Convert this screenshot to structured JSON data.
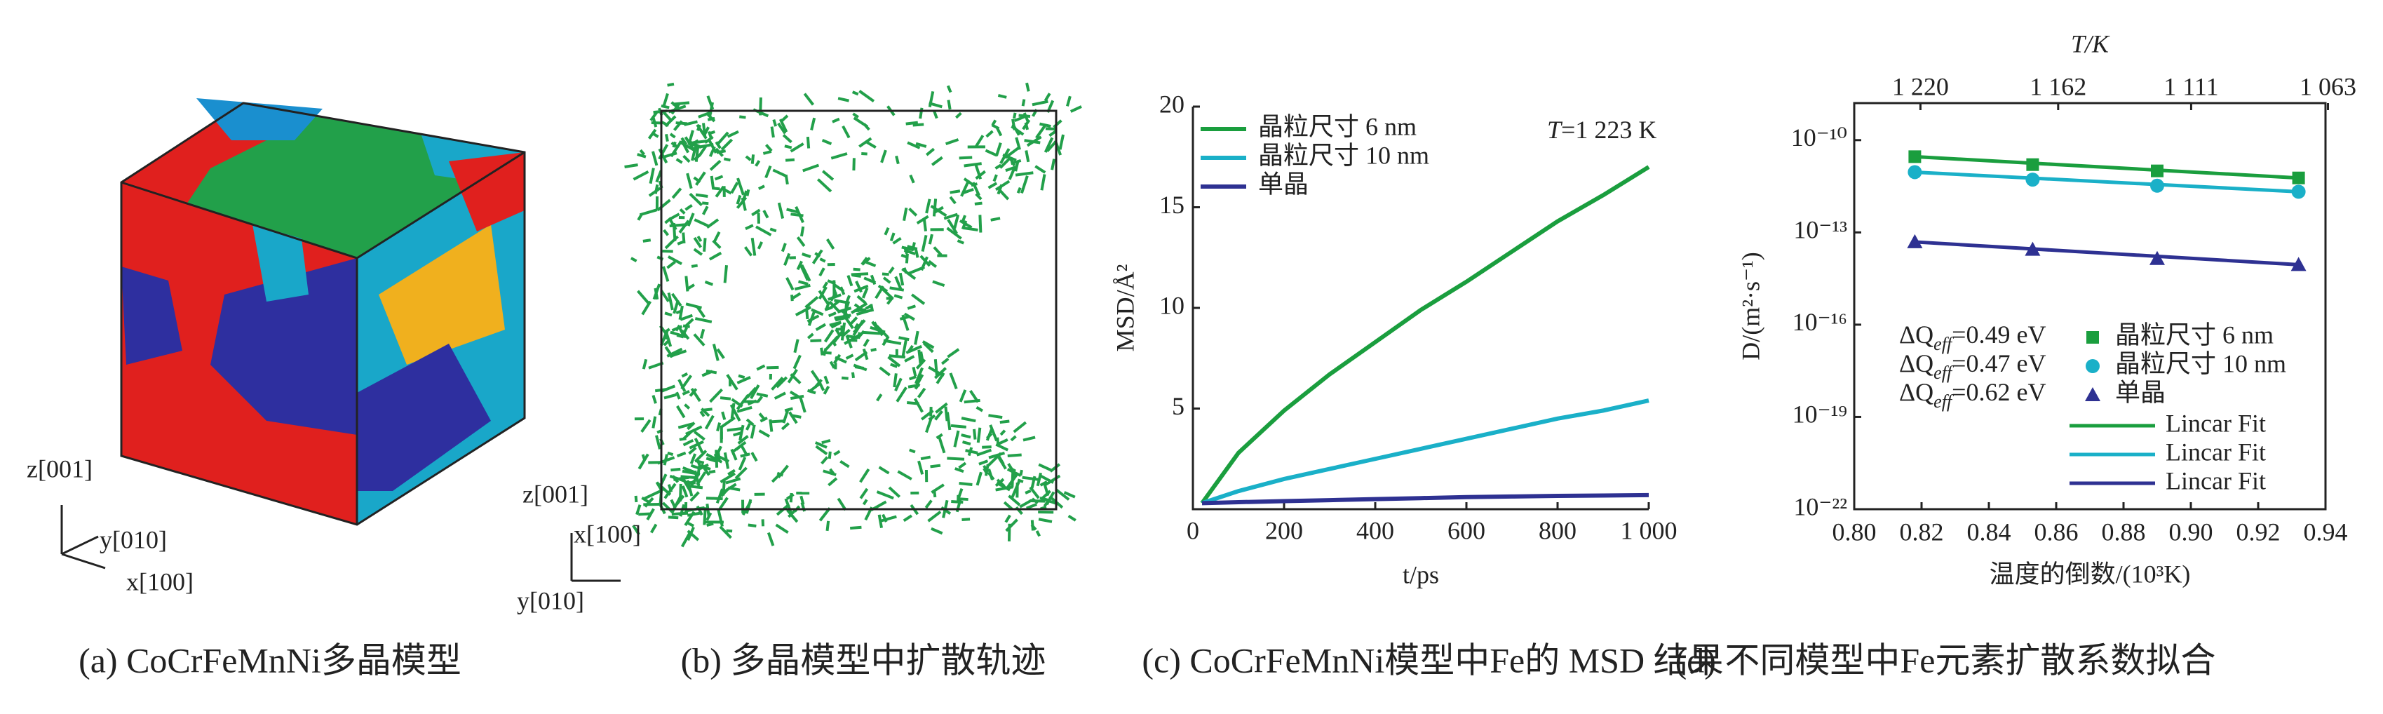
{
  "panels": [
    {
      "caption": "(a) CoCrFeMnNi多晶模型",
      "axes": [
        "z[001]",
        "y[010]",
        "x[100]"
      ]
    },
    {
      "caption": "(b) 多晶模型中扩散轨迹",
      "axes": [
        "z[001]",
        "x[100]",
        "y[010]"
      ]
    },
    {
      "caption": "(c) CoCrFeMnNi模型中Fe的 MSD 结果"
    },
    {
      "caption": "(d) 不同模型中Fe元素扩散系数拟合"
    }
  ],
  "chart_data": [
    {
      "type": "line",
      "xlabel": "t/ps",
      "ylabel": "MSD/Å²",
      "annotation": {
        "var": "T",
        "text": "=1 223 K"
      },
      "x": [
        20,
        100,
        200,
        300,
        400,
        500,
        600,
        700,
        800,
        900,
        1000
      ],
      "series": [
        {
          "name": "晶粒尺寸 6 nm",
          "color": "#1a9e3e",
          "values": [
            0.3,
            2.8,
            4.9,
            6.7,
            8.3,
            9.9,
            11.3,
            12.8,
            14.3,
            15.6,
            17.0
          ]
        },
        {
          "name": "晶粒尺寸 10 nm",
          "color": "#1ab0c8",
          "values": [
            0.3,
            0.9,
            1.5,
            2.0,
            2.5,
            3.0,
            3.5,
            4.0,
            4.5,
            4.9,
            5.4
          ]
        },
        {
          "name": "单晶",
          "color": "#2e3192",
          "values": [
            0.3,
            0.35,
            0.4,
            0.45,
            0.5,
            0.55,
            0.6,
            0.63,
            0.66,
            0.68,
            0.7
          ]
        }
      ],
      "xlim": [
        0,
        1000
      ],
      "ylim": [
        0,
        20
      ],
      "xticks": [
        0,
        200,
        400,
        600,
        800,
        {
          "value": 1000,
          "label": "1 000"
        }
      ],
      "yticks": [
        5,
        10,
        15,
        20
      ]
    },
    {
      "type": "scatter",
      "xlabel": "温度的倒数/(10³K)",
      "ylabel": "D/(m²·s⁻¹)",
      "x2label": "T/K",
      "log_y": true,
      "series": [
        {
          "name": "晶粒尺寸 6 nm",
          "color": "#1a9e3e",
          "marker": "square",
          "q": {
            "prefix": "ΔQ",
            "sub": "eff",
            "suffix": "=0.49 eV"
          },
          "x": [
            0.818,
            0.853,
            0.89,
            0.932
          ],
          "values": [
            2.9e-11,
            1.6e-11,
            1e-11,
            5.9e-12
          ]
        },
        {
          "name": "晶粒尺寸 10 nm",
          "color": "#1ab0c8",
          "marker": "circle",
          "q": {
            "prefix": "ΔQ",
            "sub": "eff",
            "suffix": "=0.47 eV"
          },
          "x": [
            0.818,
            0.853,
            0.89,
            0.932
          ],
          "values": [
            9.1e-12,
            5.2e-12,
            3.3e-12,
            2.1e-12
          ]
        },
        {
          "name": "单晶",
          "color": "#2e3192",
          "marker": "triangle",
          "q": {
            "prefix": "ΔQ",
            "sub": "eff",
            "suffix": "=0.62 eV"
          },
          "x": [
            0.818,
            0.853,
            0.89,
            0.932
          ],
          "values": [
            4.9e-14,
            2.8e-14,
            1.4e-14,
            8.9e-15
          ]
        },
        {
          "name": "Lincar Fit",
          "color": "#1a9e3e",
          "marker": "line",
          "x": [
            0.818,
            0.932
          ],
          "values": [
            2.9e-11,
            5.9e-12
          ]
        },
        {
          "name": "Lincar Fit",
          "color": "#1ab0c8",
          "marker": "line",
          "x": [
            0.818,
            0.932
          ],
          "values": [
            9.1e-12,
            2.1e-12
          ]
        },
        {
          "name": "Lincar Fit",
          "color": "#2e3192",
          "marker": "line",
          "x": [
            0.818,
            0.932
          ],
          "values": [
            4.9e-14,
            8.9e-15
          ]
        }
      ],
      "xlim": [
        0.8,
        0.94
      ],
      "ylim": [
        1e-22,
        1.6e-09
      ],
      "xticks": [
        {
          "value": 0.8,
          "label": "0.80"
        },
        0.82,
        0.84,
        0.86,
        0.88,
        {
          "value": 0.9,
          "label": "0.90"
        },
        0.92,
        0.94
      ],
      "yticks": [
        {
          "value": 1e-22,
          "label": "10⁻²²"
        },
        {
          "value": 1e-19,
          "label": "10⁻¹⁹"
        },
        {
          "value": 1e-16,
          "label": "10⁻¹⁶"
        },
        {
          "value": 1e-13,
          "label": "10⁻¹³"
        },
        {
          "value": 1e-10,
          "label": "10⁻¹⁰"
        }
      ],
      "x2ticks": [
        {
          "value": 1220,
          "label": "1 220"
        },
        {
          "value": 1162,
          "label": "1 162"
        },
        {
          "value": 1111,
          "label": "1 111"
        },
        {
          "value": 1063,
          "label": "1 063"
        }
      ]
    }
  ]
}
